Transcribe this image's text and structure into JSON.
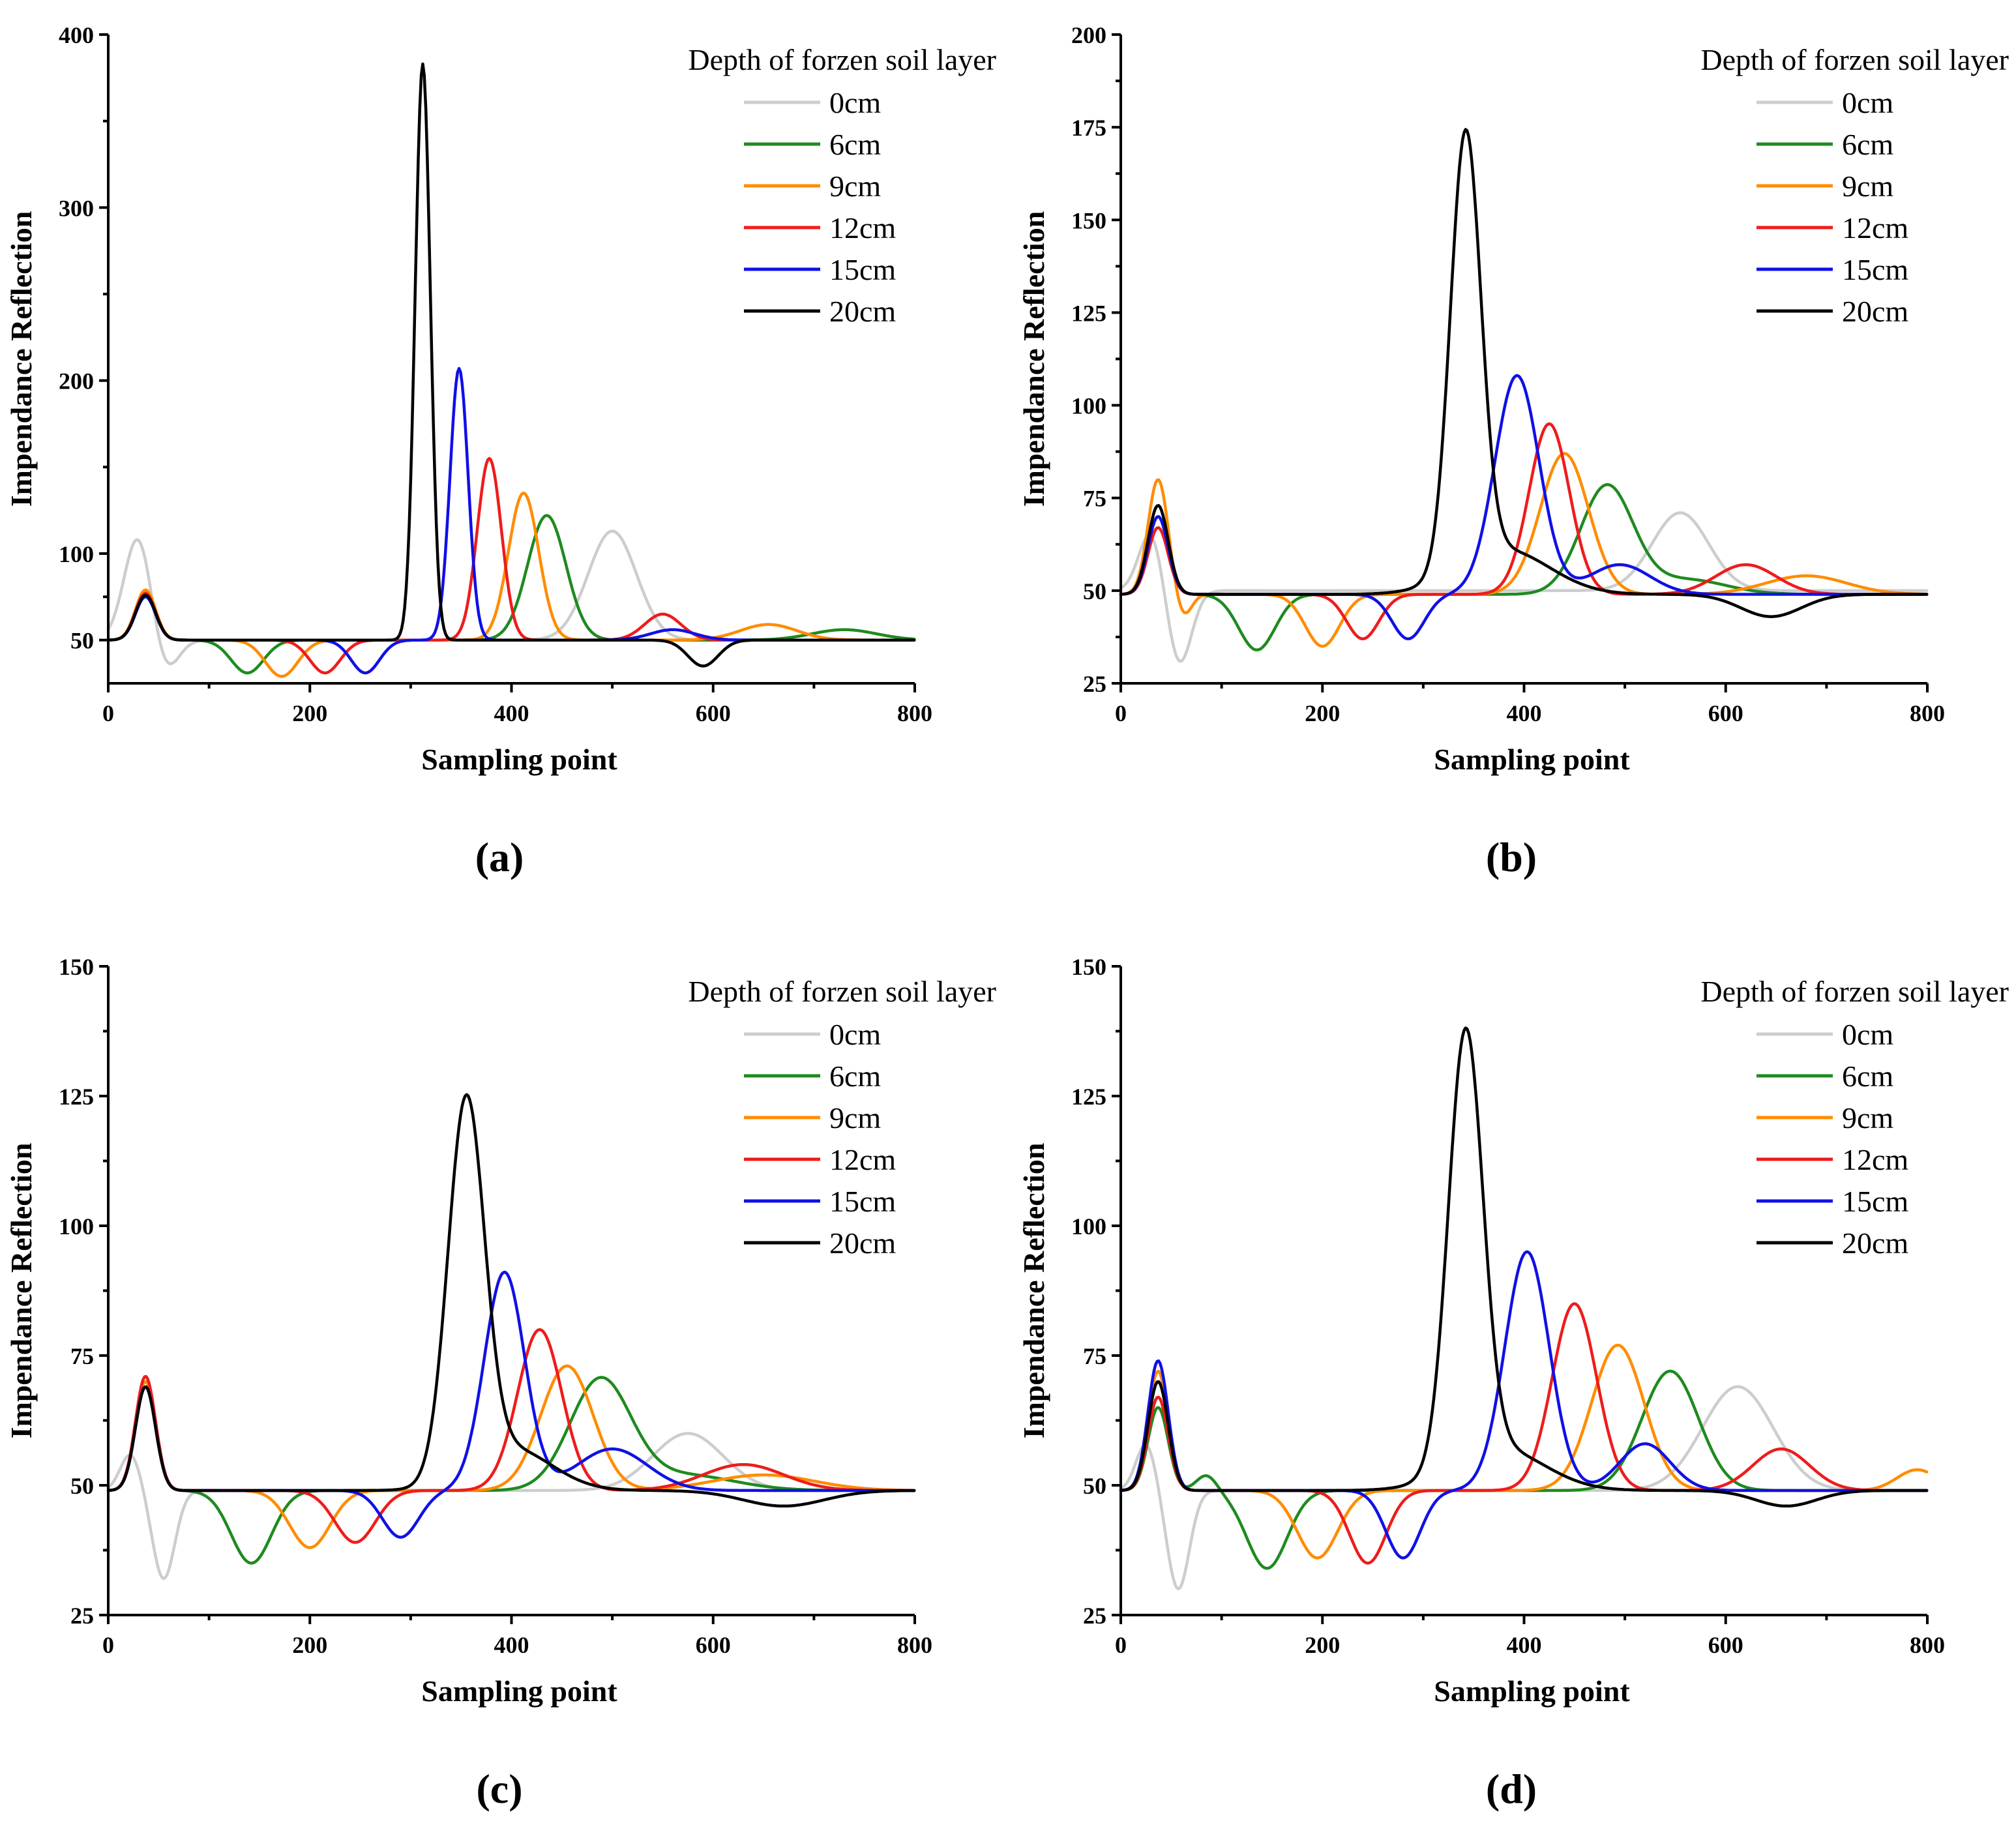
{
  "figure": {
    "legend_title": "Depth of forzen soil layer",
    "series_colors": {
      "0cm": "#cdcdcd",
      "6cm": "#1f8a1f",
      "9cm": "#ff8c00",
      "12cm": "#ee1c1c",
      "15cm": "#1010e6",
      "20cm": "#000000"
    },
    "series_names": [
      "0cm",
      "6cm",
      "9cm",
      "12cm",
      "15cm",
      "20cm"
    ]
  },
  "chart_data": [
    {
      "panel": "(a)",
      "type": "line",
      "xlabel": "Sampling point",
      "ylabel": "Impendance Reflection",
      "xlim": [
        0,
        800
      ],
      "ylim": [
        25,
        400
      ],
      "xticks": [
        "0",
        "200",
        "400",
        "600",
        "800"
      ],
      "yticks": [
        "50",
        "100",
        "200",
        "300",
        "400"
      ],
      "legend_position": "top-right",
      "series": [
        {
          "name": "0cm",
          "baseline": 50,
          "components": [
            [
              30,
              61,
              14
            ],
            [
              55,
              -21,
              13
            ],
            [
              500,
              63,
              24
            ]
          ]
        },
        {
          "name": "6cm",
          "baseline": 50,
          "components": [
            [
              37,
              28,
              10
            ],
            [
              138,
              -19,
              16
            ],
            [
              435,
              72,
              19
            ],
            [
              730,
              6,
              32
            ]
          ]
        },
        {
          "name": "9cm",
          "baseline": 50,
          "components": [
            [
              37,
              29,
              10
            ],
            [
              172,
              -21,
              16
            ],
            [
              412,
              85,
              15
            ],
            [
              655,
              9,
              28
            ]
          ]
        },
        {
          "name": "12cm",
          "baseline": 50,
          "components": [
            [
              37,
              27,
              10
            ],
            [
              215,
              -19,
              15
            ],
            [
              378,
              105,
              12
            ],
            [
              550,
              15,
              18
            ]
          ]
        },
        {
          "name": "15cm",
          "baseline": 50,
          "components": [
            [
              37,
              25,
              10
            ],
            [
              255,
              -19,
              14
            ],
            [
              348,
              157,
              9
            ],
            [
              560,
              6,
              22
            ]
          ]
        },
        {
          "name": "20cm",
          "baseline": 50,
          "components": [
            [
              37,
              26,
              10
            ],
            [
              312,
              333,
              7.5
            ],
            [
              590,
              -15,
              15
            ]
          ]
        }
      ]
    },
    {
      "panel": "(b)",
      "type": "line",
      "xlabel": "Sampling point",
      "ylabel": "Impendance Reflection",
      "xlim": [
        0,
        800
      ],
      "ylim": [
        25,
        200
      ],
      "xticks": [
        "0",
        "200",
        "400",
        "600",
        "800"
      ],
      "yticks": [
        "25",
        "50",
        "75",
        "100",
        "125",
        "150",
        "175",
        "200"
      ],
      "legend_position": "top-right",
      "series": [
        {
          "name": "0cm",
          "baseline": 50,
          "components": [
            [
              30,
              16,
              12
            ],
            [
              58,
              -20,
              12
            ],
            [
              555,
              21,
              28
            ]
          ]
        },
        {
          "name": "6cm",
          "baseline": 49,
          "components": [
            [
              37,
              21,
              10
            ],
            [
              135,
              -15,
              18
            ],
            [
              482,
              29,
              26
            ],
            [
              560,
              4,
              40
            ]
          ]
        },
        {
          "name": "9cm",
          "baseline": 49,
          "components": [
            [
              37,
              31,
              10
            ],
            [
              62,
              -6,
              8
            ],
            [
              200,
              -14,
              17
            ],
            [
              440,
              38,
              24
            ],
            [
              680,
              5,
              40
            ]
          ]
        },
        {
          "name": "12cm",
          "baseline": 49,
          "components": [
            [
              37,
              18,
              10
            ],
            [
              240,
              -12,
              16
            ],
            [
              425,
              46,
              20
            ],
            [
              620,
              8,
              30
            ]
          ]
        },
        {
          "name": "15cm",
          "baseline": 49,
          "components": [
            [
              37,
              21,
              10
            ],
            [
              285,
              -12,
              16
            ],
            [
              393,
              59,
              22
            ],
            [
              495,
              8,
              30
            ]
          ]
        },
        {
          "name": "20cm",
          "baseline": 49,
          "components": [
            [
              37,
              24,
              10
            ],
            [
              342,
              117,
              15
            ],
            [
              380,
              12,
              45
            ],
            [
              645,
              -6,
              30
            ]
          ]
        }
      ]
    },
    {
      "panel": "(c)",
      "type": "line",
      "xlabel": "Sampling point",
      "ylabel": "Impendance Reflection",
      "xlim": [
        0,
        800
      ],
      "ylim": [
        25,
        150
      ],
      "xticks": [
        "0",
        "200",
        "400",
        "600",
        "800"
      ],
      "yticks": [
        "25",
        "50",
        "75",
        "100",
        "125",
        "150"
      ],
      "legend_position": "top-right",
      "series": [
        {
          "name": "0cm",
          "baseline": 49,
          "components": [
            [
              22,
              7,
              10
            ],
            [
              55,
              -17,
              11
            ],
            [
              575,
              11,
              35
            ]
          ]
        },
        {
          "name": "6cm",
          "baseline": 49,
          "components": [
            [
              37,
              20,
              10
            ],
            [
              142,
              -14,
              20
            ],
            [
              488,
              21,
              30
            ],
            [
              570,
              3,
              50
            ]
          ]
        },
        {
          "name": "9cm",
          "baseline": 49,
          "components": [
            [
              37,
              21,
              10
            ],
            [
              200,
              -11,
              20
            ],
            [
              455,
              24,
              26
            ],
            [
              650,
              3,
              50
            ]
          ]
        },
        {
          "name": "12cm",
          "baseline": 49,
          "components": [
            [
              37,
              22,
              10
            ],
            [
              245,
              -10,
              20
            ],
            [
              428,
              31,
              22
            ],
            [
              630,
              5,
              40
            ]
          ]
        },
        {
          "name": "15cm",
          "baseline": 49,
          "components": [
            [
              37,
              20,
              10
            ],
            [
              290,
              -9,
              18
            ],
            [
              393,
              42,
              20
            ],
            [
              500,
              8,
              35
            ]
          ]
        },
        {
          "name": "20cm",
          "baseline": 49,
          "components": [
            [
              37,
              20,
              10
            ],
            [
              355,
              72,
              18
            ],
            [
              400,
              8,
              40
            ],
            [
              670,
              -3,
              40
            ]
          ]
        }
      ]
    },
    {
      "panel": "(d)",
      "type": "line",
      "xlabel": "Sampling point",
      "ylabel": "Impendance Reflection",
      "xlim": [
        0,
        800
      ],
      "ylim": [
        25,
        150
      ],
      "xticks": [
        "0",
        "200",
        "400",
        "600",
        "800"
      ],
      "yticks": [
        "25",
        "50",
        "75",
        "100",
        "125",
        "150"
      ],
      "legend_position": "top-right",
      "series": [
        {
          "name": "0cm",
          "baseline": 49,
          "components": [
            [
              25,
              9,
              10
            ],
            [
              57,
              -19,
              11
            ],
            [
              612,
              20,
              35
            ]
          ]
        },
        {
          "name": "6cm",
          "baseline": 49,
          "components": [
            [
              37,
              16,
              10
            ],
            [
              85,
              3,
              10
            ],
            [
              145,
              -15,
              20
            ],
            [
              545,
              23,
              28
            ]
          ]
        },
        {
          "name": "9cm",
          "baseline": 49,
          "components": [
            [
              37,
              23,
              10
            ],
            [
              195,
              -13,
              20
            ],
            [
              493,
              28,
              26
            ],
            [
              790,
              4,
              20
            ]
          ]
        },
        {
          "name": "12cm",
          "baseline": 49,
          "components": [
            [
              37,
              18,
              10
            ],
            [
              245,
              -14,
              18
            ],
            [
              450,
              36,
              22
            ],
            [
              655,
              8,
              28
            ]
          ]
        },
        {
          "name": "15cm",
          "baseline": 49,
          "components": [
            [
              37,
              25,
              10
            ],
            [
              280,
              -13,
              17
            ],
            [
              403,
              46,
              22
            ],
            [
              520,
              9,
              25
            ]
          ]
        },
        {
          "name": "20cm",
          "baseline": 49,
          "components": [
            [
              37,
              21,
              10
            ],
            [
              342,
              83,
              17
            ],
            [
              375,
              8,
              45
            ],
            [
              660,
              -3,
              30
            ]
          ]
        }
      ]
    }
  ]
}
